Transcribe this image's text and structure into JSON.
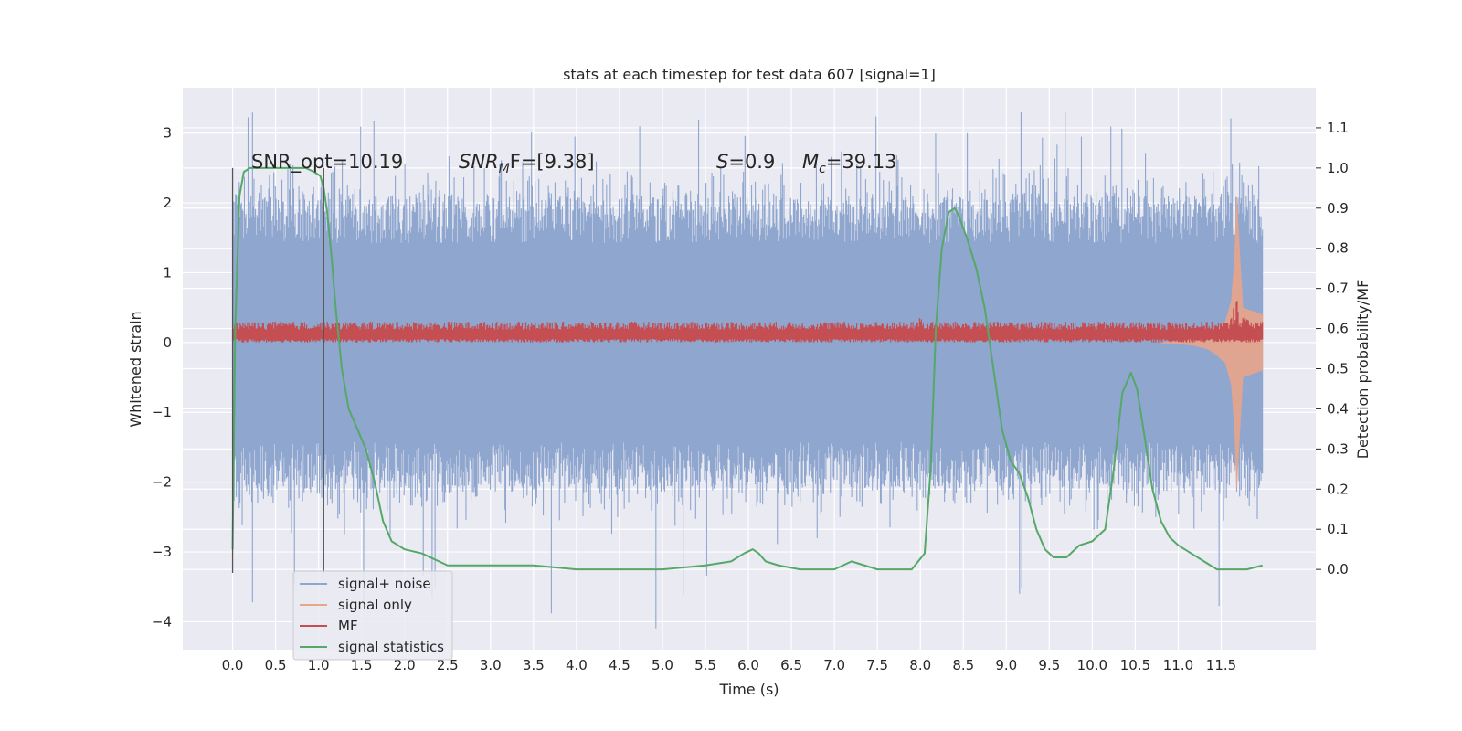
{
  "chart_data": {
    "type": "line",
    "title": "stats at each timestep for test data 607 [signal=1]",
    "xlabel": "Time (s)",
    "ylabel": "Whitened strain",
    "y2label": "Detection probability/MF",
    "xlim": [
      -0.58,
      12.6
    ],
    "ylim": [
      -4.4,
      3.65
    ],
    "y2lim": [
      -0.2,
      1.2
    ],
    "x_ticks": [
      0.0,
      0.5,
      1.0,
      1.5,
      2.0,
      2.5,
      3.0,
      3.5,
      4.0,
      4.5,
      5.0,
      5.5,
      6.0,
      6.5,
      7.0,
      7.5,
      8.0,
      8.5,
      9.0,
      9.5,
      10.0,
      10.5,
      11.0,
      11.5
    ],
    "x_tick_labels": [
      "0.0",
      "0.5",
      "1.0",
      "1.5",
      "2.0",
      "2.5",
      "3.0",
      "3.5",
      "4.0",
      "4.5",
      "5.0",
      "5.5",
      "6.0",
      "6.5",
      "7.0",
      "7.5",
      "8.0",
      "8.5",
      "9.0",
      "9.5",
      "10.0",
      "10.5",
      "11.0",
      "11.5"
    ],
    "y_ticks": [
      3,
      2,
      1,
      0,
      -1,
      -2,
      -3,
      -4
    ],
    "y_tick_labels": [
      "3",
      "2",
      "1",
      "0",
      "−1",
      "−2",
      "−3",
      "−4"
    ],
    "y2_ticks": [
      1.1,
      1.0,
      0.9,
      0.8,
      0.7,
      0.6,
      0.5,
      0.4,
      0.3,
      0.2,
      0.1,
      0.0
    ],
    "y2_tick_labels": [
      "1.1",
      "1.0",
      "0.9",
      "0.8",
      "0.7",
      "0.6",
      "0.5",
      "0.4",
      "0.3",
      "0.2",
      "0.1",
      "0.0"
    ],
    "grid": true,
    "legend_position": "lower-left",
    "annotations": [
      {
        "text": "SNR_opt=10.19"
      },
      {
        "text": "SNR",
        "sub": "M",
        "tail": "F=[9.38]"
      },
      {
        "text": "S",
        "tail": "=0.9"
      },
      {
        "text": "M",
        "sub": "c",
        "tail": "=39.13"
      }
    ],
    "vertical_markers_x": [
      0.0,
      1.06
    ],
    "noise_envelope": {
      "x_range": [
        0.0,
        11.98
      ],
      "y_range": [
        -1.9,
        1.9
      ],
      "spike_extremes": [
        3.3,
        -4.1
      ]
    },
    "series": [
      {
        "name": "signal+ noise",
        "color": "#8fa6cf",
        "axis": "left",
        "y_range": [
          -4.1,
          3.3
        ]
      },
      {
        "name": "signal only",
        "color": "#e8a58a",
        "axis": "left",
        "x": [
          10.8,
          11.0,
          11.2,
          11.35,
          11.45,
          11.55,
          11.62,
          11.66,
          11.68,
          11.7,
          11.75,
          11.98
        ],
        "amp": [
          0.01,
          0.02,
          0.05,
          0.1,
          0.18,
          0.3,
          0.6,
          1.3,
          2.1,
          1.6,
          0.5,
          0.4
        ]
      },
      {
        "name": "MF",
        "color": "#c44e52",
        "axis": "left",
        "x": [
          0.0,
          7.98,
          8.0,
          8.02,
          11.6,
          11.66,
          11.68,
          11.7,
          11.98
        ],
        "y_base": [
          0.0,
          0.0,
          0.0,
          0.0,
          0.0,
          0.0,
          0.0,
          0.0,
          0.0
        ],
        "y_peak": [
          0.3,
          0.3,
          0.55,
          0.3,
          0.3,
          0.6,
          1.0,
          0.4,
          0.3
        ]
      },
      {
        "name": "signal statistics",
        "color": "#55a868",
        "axis": "right",
        "x": [
          0.0,
          0.03,
          0.08,
          0.13,
          0.2,
          0.35,
          0.5,
          0.7,
          0.85,
          0.95,
          1.02,
          1.06,
          1.1,
          1.15,
          1.2,
          1.27,
          1.35,
          1.45,
          1.55,
          1.65,
          1.75,
          1.85,
          2.0,
          2.2,
          2.5,
          3.0,
          3.5,
          4.0,
          4.5,
          5.0,
          5.5,
          5.8,
          5.95,
          6.05,
          6.12,
          6.2,
          6.35,
          6.6,
          7.0,
          7.2,
          7.5,
          7.9,
          8.05,
          8.12,
          8.18,
          8.25,
          8.33,
          8.4,
          8.45,
          8.55,
          8.65,
          8.75,
          8.85,
          8.95,
          9.05,
          9.15,
          9.25,
          9.35,
          9.45,
          9.55,
          9.7,
          9.85,
          10.0,
          10.15,
          10.25,
          10.35,
          10.45,
          10.52,
          10.58,
          10.63,
          10.7,
          10.8,
          10.9,
          11.0,
          11.15,
          11.3,
          11.45,
          11.6,
          11.8,
          11.98
        ],
        "y": [
          0.05,
          0.6,
          0.93,
          0.99,
          1.0,
          1.0,
          1.0,
          1.0,
          1.0,
          0.99,
          0.98,
          0.95,
          0.89,
          0.78,
          0.65,
          0.5,
          0.4,
          0.35,
          0.3,
          0.22,
          0.12,
          0.07,
          0.05,
          0.04,
          0.01,
          0.01,
          0.01,
          0.0,
          0.0,
          0.0,
          0.01,
          0.02,
          0.04,
          0.05,
          0.04,
          0.02,
          0.01,
          0.0,
          0.0,
          0.02,
          0.0,
          0.0,
          0.04,
          0.25,
          0.6,
          0.8,
          0.89,
          0.9,
          0.88,
          0.82,
          0.75,
          0.65,
          0.5,
          0.35,
          0.27,
          0.24,
          0.18,
          0.1,
          0.05,
          0.03,
          0.03,
          0.06,
          0.07,
          0.1,
          0.25,
          0.44,
          0.49,
          0.45,
          0.37,
          0.3,
          0.2,
          0.12,
          0.08,
          0.06,
          0.04,
          0.02,
          0.0,
          0.0,
          0.0,
          0.01
        ]
      }
    ]
  }
}
